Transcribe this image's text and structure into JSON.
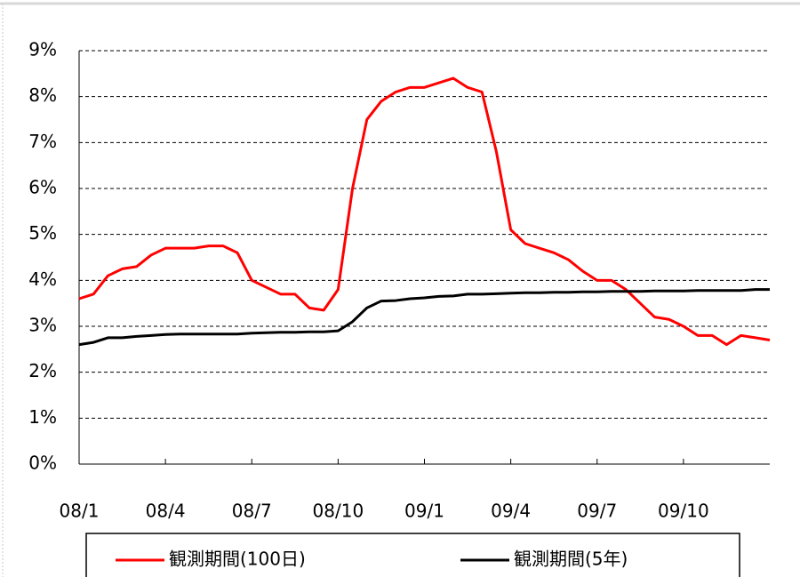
{
  "chart_data": {
    "type": "line",
    "categories": [
      "08/1",
      null,
      null,
      null,
      null,
      null,
      "08/4",
      null,
      null,
      null,
      null,
      null,
      "08/7",
      null,
      null,
      null,
      null,
      null,
      "08/10",
      null,
      null,
      null,
      null,
      null,
      "09/1",
      null,
      null,
      null,
      null,
      null,
      "09/4",
      null,
      null,
      null,
      null,
      null,
      "09/7",
      null,
      null,
      null,
      null,
      null,
      "09/10",
      null,
      null,
      null,
      null,
      null,
      null
    ],
    "series": [
      {
        "name": "観測期間(100日)",
        "color": "#ff0000",
        "values": [
          3.6,
          3.7,
          4.1,
          4.25,
          4.3,
          4.55,
          4.7,
          4.7,
          4.7,
          4.75,
          4.75,
          4.6,
          4.0,
          3.85,
          3.7,
          3.7,
          3.4,
          3.35,
          3.8,
          6.0,
          7.5,
          7.9,
          8.1,
          8.2,
          8.2,
          8.3,
          8.4,
          8.2,
          8.1,
          6.8,
          5.1,
          4.8,
          4.7,
          4.6,
          4.45,
          4.2,
          4.0,
          4.0,
          3.8,
          3.5,
          3.2,
          3.15,
          3.0,
          2.8,
          2.8,
          2.6,
          2.8,
          2.75,
          2.7
        ]
      },
      {
        "name": "観測期間(5年)",
        "color": "#000000",
        "values": [
          2.6,
          2.65,
          2.75,
          2.75,
          2.78,
          2.8,
          2.82,
          2.83,
          2.83,
          2.83,
          2.83,
          2.83,
          2.85,
          2.86,
          2.87,
          2.87,
          2.88,
          2.88,
          2.9,
          3.1,
          3.4,
          3.55,
          3.56,
          3.6,
          3.62,
          3.65,
          3.66,
          3.7,
          3.7,
          3.71,
          3.72,
          3.73,
          3.73,
          3.74,
          3.74,
          3.75,
          3.75,
          3.76,
          3.76,
          3.76,
          3.77,
          3.77,
          3.77,
          3.78,
          3.78,
          3.78,
          3.78,
          3.8,
          3.8
        ]
      }
    ],
    "ylim": [
      0,
      9
    ],
    "yticks": [
      {
        "value": 0,
        "label": "0%"
      },
      {
        "value": 1,
        "label": "1%"
      },
      {
        "value": 2,
        "label": "2%"
      },
      {
        "value": 3,
        "label": "3%"
      },
      {
        "value": 4,
        "label": "4%"
      },
      {
        "value": 5,
        "label": "5%"
      },
      {
        "value": 6,
        "label": "6%"
      },
      {
        "value": 7,
        "label": "7%"
      },
      {
        "value": 8,
        "label": "8%"
      },
      {
        "value": 9,
        "label": "9%"
      }
    ],
    "grid": true,
    "legend": "bottom"
  }
}
